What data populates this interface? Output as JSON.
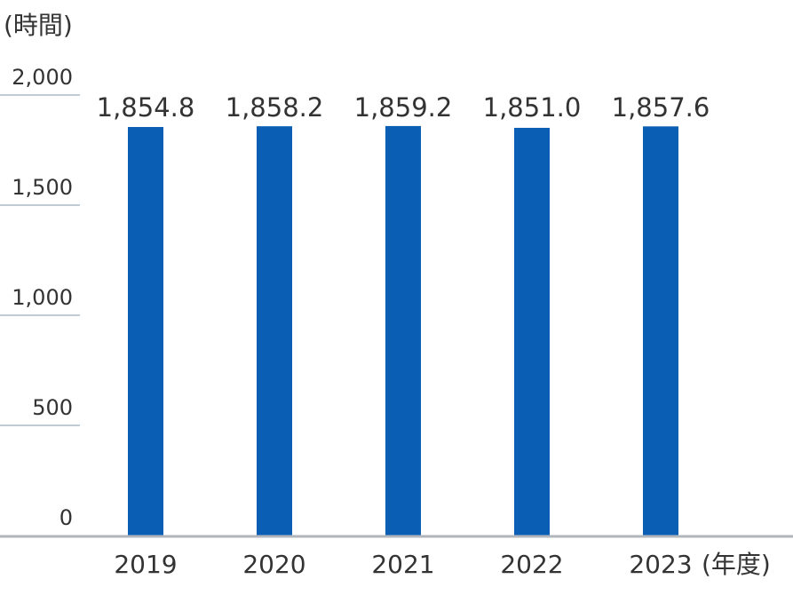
{
  "chart_data": {
    "type": "bar",
    "title": "",
    "ylabel": "(時間)",
    "xlabel": "(年度)",
    "categories": [
      "2019",
      "2020",
      "2021",
      "2022",
      "2023"
    ],
    "values": [
      1854.8,
      1858.2,
      1859.2,
      1851.0,
      1857.6
    ],
    "value_labels": [
      "1,854.8",
      "1,858.2",
      "1,859.2",
      "1,851.0",
      "1,857.6"
    ],
    "ylim": [
      0,
      2000
    ],
    "yticks": [
      0,
      500,
      1000,
      1500,
      2000
    ],
    "ytick_labels": [
      "0",
      "500",
      "1,000",
      "1,500",
      "2,000"
    ],
    "grid": false,
    "colors": {
      "bar": "#0a5fb4",
      "axis": "#b0b6bb",
      "tick": "#7f9aa8"
    }
  }
}
